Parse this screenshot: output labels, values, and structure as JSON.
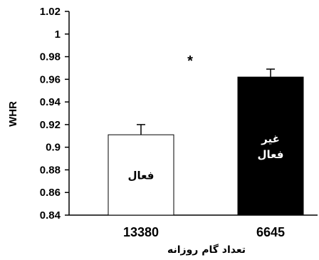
{
  "chart_data": {
    "type": "bar",
    "title": "",
    "xlabel": "تعداد گام روزانه",
    "ylabel": "WHR",
    "ylim": [
      0.84,
      1.02
    ],
    "yticks": [
      "0.84",
      "0.86",
      "0.88",
      "0.9",
      "0.92",
      "0.94",
      "0.96",
      "0.98",
      "1",
      "1.02"
    ],
    "categories": [
      "13380",
      "6645"
    ],
    "values": [
      0.911,
      0.962
    ],
    "errors": [
      0.009,
      0.007
    ],
    "bar_labels": [
      [
        "فعال"
      ],
      [
        "غیر",
        "فعال"
      ]
    ],
    "bar_colors": [
      "#ffffff",
      "#000000"
    ],
    "annotation": "*",
    "grid": false
  }
}
